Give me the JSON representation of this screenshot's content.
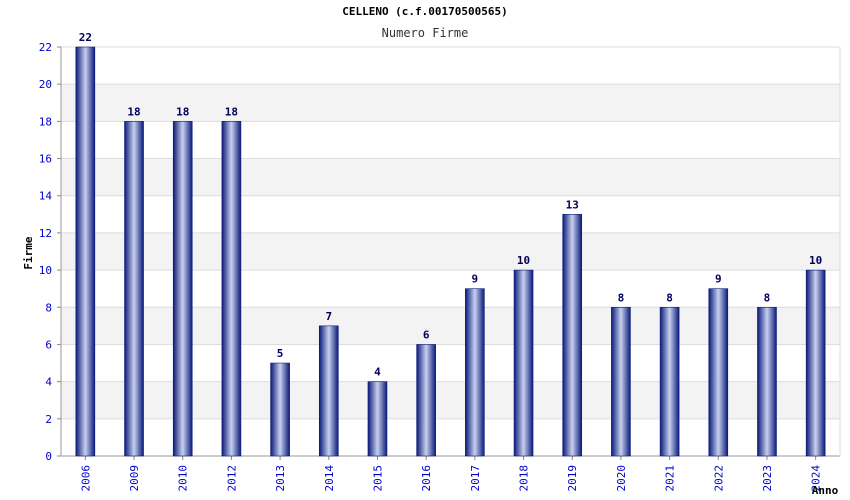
{
  "chart_data": {
    "type": "bar",
    "title": "CELLENO (c.f.00170500565)",
    "subtitle": "Numero Firme",
    "xlabel": "Anno",
    "ylabel": "Firme",
    "categories": [
      "2006",
      "2009",
      "2010",
      "2012",
      "2013",
      "2014",
      "2015",
      "2016",
      "2017",
      "2018",
      "2019",
      "2020",
      "2021",
      "2022",
      "2023",
      "2024"
    ],
    "values": [
      22,
      18,
      18,
      18,
      5,
      7,
      4,
      6,
      9,
      10,
      13,
      8,
      8,
      9,
      8,
      10
    ],
    "ylim": [
      0,
      22
    ],
    "yticks": [
      0,
      2,
      4,
      6,
      8,
      10,
      12,
      14,
      16,
      18,
      20,
      22
    ],
    "grid": true,
    "data_labels": true,
    "colors": {
      "bar_dark": "#0a1a7a",
      "bar_light": "#c8d0ee",
      "tick_label": "#0000cc",
      "value_label": "#00005a",
      "band": "#f3f3f3",
      "gridline": "#dddddd"
    }
  }
}
